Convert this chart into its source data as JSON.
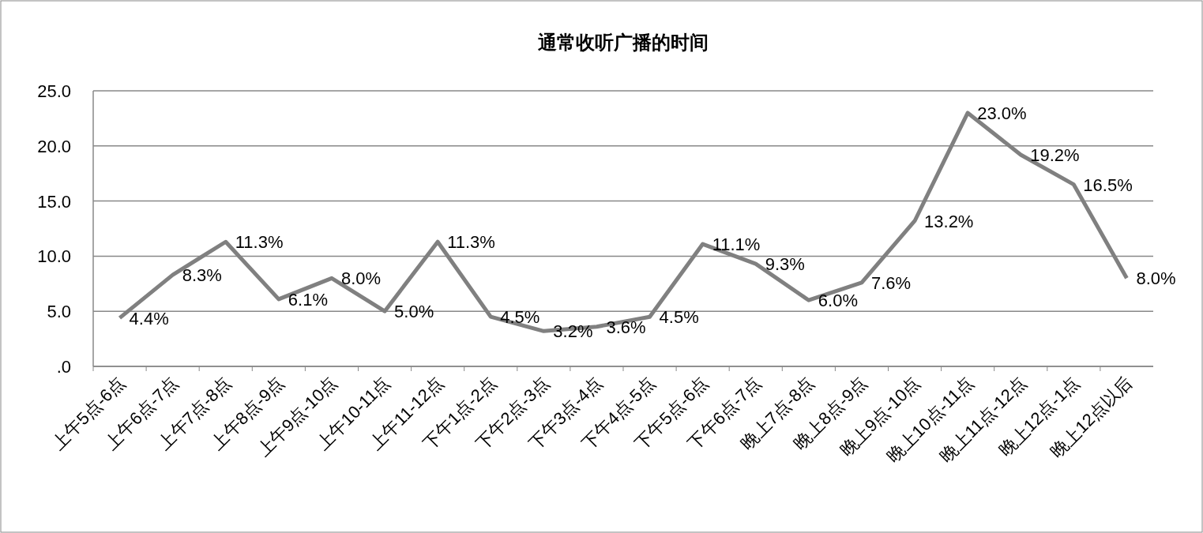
{
  "chart_data": {
    "type": "line",
    "title": "通常收听广播的时间",
    "categories": [
      "上午5点-6点",
      "上午6点-7点",
      "上午7点-8点",
      "上午8点-9点",
      "上午9点-10点",
      "上午10-11点",
      "上午11-12点",
      "下午1点-2点",
      "下午2点-3点",
      "下午3点-4点",
      "下午4点-5点",
      "下午5点-6点",
      "下午6点-7点",
      "晚上7点-8点",
      "晚上8点-9点",
      "晚上9点-10点",
      "晚上10点-11点",
      "晚上11点-12点",
      "晚上12点-1点",
      "晚上12点以后"
    ],
    "series": [
      {
        "color": "#808080",
        "values": [
          4.4,
          8.3,
          11.3,
          6.1,
          8.0,
          5.0,
          11.3,
          4.5,
          3.2,
          3.6,
          4.5,
          11.1,
          9.3,
          6.0,
          7.6,
          13.2,
          23.0,
          19.2,
          16.5,
          8.0
        ],
        "value_labels": [
          "4.4%",
          "8.3%",
          "11.3%",
          "6.1%",
          "8.0%",
          "5.0%",
          "11.3%",
          "4.5%",
          "3.2%",
          "3.6%",
          "4.5%",
          "11.1%",
          "9.3%",
          "6.0%",
          "7.6%",
          "13.2%",
          "23.0%",
          "19.2%",
          "16.5%",
          "8.0%"
        ]
      }
    ],
    "ylim": [
      0,
      25
    ],
    "yticks": [
      {
        "value": 0,
        "label": ".0"
      },
      {
        "value": 5,
        "label": "5.0"
      },
      {
        "value": 10,
        "label": "10.0"
      },
      {
        "value": 15,
        "label": "15.0"
      },
      {
        "value": 20,
        "label": "20.0"
      },
      {
        "value": 25,
        "label": "25.0"
      }
    ],
    "grid": "y",
    "marker": "none",
    "line_style": "solid"
  }
}
